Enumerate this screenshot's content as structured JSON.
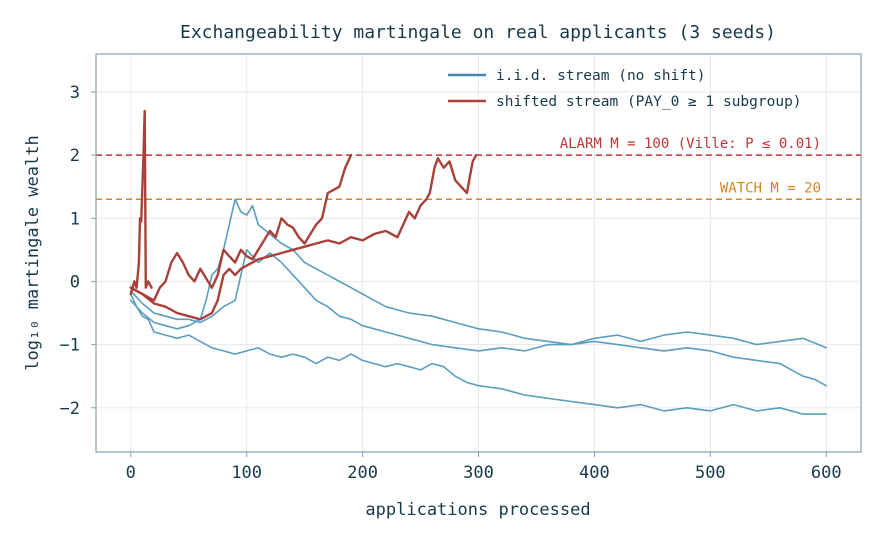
{
  "chart_data": {
    "type": "line",
    "title": "Exchangeability martingale on real applicants (3 seeds)",
    "xlabel": "applications processed",
    "ylabel": "log₁₀ martingale wealth",
    "xlim": [
      -30,
      630
    ],
    "ylim": [
      -2.7,
      3.6
    ],
    "xticks": [
      0,
      100,
      200,
      300,
      400,
      500,
      600
    ],
    "yticks": [
      -2,
      -1,
      0,
      1,
      2,
      3
    ],
    "ytick_labels": [
      "−2",
      "−1",
      "0",
      "1",
      "2",
      "3"
    ],
    "grid": true,
    "legend_position": "top-right",
    "legend": [
      {
        "label": "i.i.d. stream (no shift)",
        "color": "#3f86b0"
      },
      {
        "label": "shifted stream (PAY_0 ≥ 1 subgroup)",
        "color": "#a8413a"
      }
    ],
    "thresholds": [
      {
        "y": 2.0,
        "label": "ALARM  M = 100  (Ville: P ≤ 0.01)",
        "color": "#c03535"
      },
      {
        "y": 1.3,
        "label": "WATCH  M = 20",
        "color": "#d6852a"
      }
    ],
    "series": [
      {
        "group": "iid",
        "color": "#5a9ec0",
        "points": [
          [
            0,
            -0.2
          ],
          [
            5,
            -0.4
          ],
          [
            10,
            -0.55
          ],
          [
            15,
            -0.6
          ],
          [
            20,
            -0.8
          ],
          [
            30,
            -0.85
          ],
          [
            40,
            -0.9
          ],
          [
            50,
            -0.85
          ],
          [
            60,
            -0.95
          ],
          [
            70,
            -1.05
          ],
          [
            80,
            -1.1
          ],
          [
            90,
            -1.15
          ],
          [
            100,
            -1.1
          ],
          [
            110,
            -1.05
          ],
          [
            120,
            -1.15
          ],
          [
            130,
            -1.2
          ],
          [
            140,
            -1.15
          ],
          [
            150,
            -1.2
          ],
          [
            160,
            -1.3
          ],
          [
            170,
            -1.2
          ],
          [
            180,
            -1.25
          ],
          [
            190,
            -1.15
          ],
          [
            200,
            -1.25
          ],
          [
            210,
            -1.3
          ],
          [
            220,
            -1.35
          ],
          [
            230,
            -1.3
          ],
          [
            240,
            -1.35
          ],
          [
            250,
            -1.4
          ],
          [
            260,
            -1.3
          ],
          [
            270,
            -1.35
          ],
          [
            280,
            -1.5
          ],
          [
            290,
            -1.6
          ],
          [
            300,
            -1.65
          ],
          [
            320,
            -1.7
          ],
          [
            340,
            -1.8
          ],
          [
            360,
            -1.85
          ],
          [
            380,
            -1.9
          ],
          [
            400,
            -1.95
          ],
          [
            420,
            -2.0
          ],
          [
            440,
            -1.95
          ],
          [
            460,
            -2.05
          ],
          [
            480,
            -2.0
          ],
          [
            500,
            -2.05
          ],
          [
            520,
            -1.95
          ],
          [
            540,
            -2.05
          ],
          [
            560,
            -2.0
          ],
          [
            580,
            -2.1
          ],
          [
            600,
            -2.1
          ]
        ]
      },
      {
        "group": "iid",
        "color": "#5a9ec0",
        "points": [
          [
            0,
            -0.3
          ],
          [
            10,
            -0.5
          ],
          [
            20,
            -0.65
          ],
          [
            30,
            -0.7
          ],
          [
            40,
            -0.75
          ],
          [
            50,
            -0.7
          ],
          [
            60,
            -0.6
          ],
          [
            65,
            -0.3
          ],
          [
            70,
            0.1
          ],
          [
            75,
            0.2
          ],
          [
            80,
            0.5
          ],
          [
            85,
            0.9
          ],
          [
            90,
            1.3
          ],
          [
            95,
            1.1
          ],
          [
            100,
            1.05
          ],
          [
            105,
            1.2
          ],
          [
            110,
            0.9
          ],
          [
            120,
            0.75
          ],
          [
            130,
            0.6
          ],
          [
            140,
            0.5
          ],
          [
            150,
            0.3
          ],
          [
            160,
            0.2
          ],
          [
            170,
            0.1
          ],
          [
            180,
            0.0
          ],
          [
            190,
            -0.1
          ],
          [
            200,
            -0.2
          ],
          [
            210,
            -0.3
          ],
          [
            220,
            -0.4
          ],
          [
            230,
            -0.45
          ],
          [
            240,
            -0.5
          ],
          [
            260,
            -0.55
          ],
          [
            280,
            -0.65
          ],
          [
            300,
            -0.75
          ],
          [
            320,
            -0.8
          ],
          [
            340,
            -0.9
          ],
          [
            360,
            -0.95
          ],
          [
            380,
            -1.0
          ],
          [
            400,
            -0.95
          ],
          [
            420,
            -1.0
          ],
          [
            440,
            -1.05
          ],
          [
            460,
            -1.1
          ],
          [
            480,
            -1.05
          ],
          [
            500,
            -1.1
          ],
          [
            520,
            -1.2
          ],
          [
            540,
            -1.25
          ],
          [
            560,
            -1.3
          ],
          [
            580,
            -1.5
          ],
          [
            590,
            -1.55
          ],
          [
            600,
            -1.65
          ]
        ]
      },
      {
        "group": "iid",
        "color": "#5a9ec0",
        "points": [
          [
            0,
            -0.15
          ],
          [
            10,
            -0.35
          ],
          [
            20,
            -0.5
          ],
          [
            30,
            -0.55
          ],
          [
            40,
            -0.6
          ],
          [
            50,
            -0.6
          ],
          [
            60,
            -0.65
          ],
          [
            70,
            -0.55
          ],
          [
            80,
            -0.4
          ],
          [
            90,
            -0.3
          ],
          [
            95,
            0.1
          ],
          [
            100,
            0.5
          ],
          [
            110,
            0.3
          ],
          [
            120,
            0.45
          ],
          [
            130,
            0.3
          ],
          [
            140,
            0.1
          ],
          [
            150,
            -0.1
          ],
          [
            160,
            -0.3
          ],
          [
            170,
            -0.4
          ],
          [
            180,
            -0.55
          ],
          [
            190,
            -0.6
          ],
          [
            200,
            -0.7
          ],
          [
            210,
            -0.75
          ],
          [
            220,
            -0.8
          ],
          [
            230,
            -0.85
          ],
          [
            240,
            -0.9
          ],
          [
            250,
            -0.95
          ],
          [
            260,
            -1.0
          ],
          [
            280,
            -1.05
          ],
          [
            300,
            -1.1
          ],
          [
            320,
            -1.05
          ],
          [
            340,
            -1.1
          ],
          [
            360,
            -1.0
          ],
          [
            380,
            -1.0
          ],
          [
            400,
            -0.9
          ],
          [
            420,
            -0.85
          ],
          [
            440,
            -0.95
          ],
          [
            460,
            -0.85
          ],
          [
            480,
            -0.8
          ],
          [
            500,
            -0.85
          ],
          [
            520,
            -0.9
          ],
          [
            540,
            -1.0
          ],
          [
            560,
            -0.95
          ],
          [
            580,
            -0.9
          ],
          [
            600,
            -1.05
          ]
        ]
      },
      {
        "group": "shifted",
        "color": "#a8413a",
        "points": [
          [
            0,
            -0.2
          ],
          [
            3,
            0.0
          ],
          [
            5,
            -0.1
          ],
          [
            7,
            0.3
          ],
          [
            8,
            1.0
          ],
          [
            9,
            0.95
          ],
          [
            10,
            1.5
          ],
          [
            11,
            2.0
          ],
          [
            12,
            2.7
          ],
          [
            13,
            -0.1
          ],
          [
            15,
            0.0
          ],
          [
            18,
            -0.1
          ]
        ]
      },
      {
        "group": "shifted",
        "color": "#a8413a",
        "points": [
          [
            0,
            -0.1
          ],
          [
            10,
            -0.2
          ],
          [
            20,
            -0.3
          ],
          [
            25,
            -0.1
          ],
          [
            30,
            0.0
          ],
          [
            35,
            0.3
          ],
          [
            40,
            0.45
          ],
          [
            45,
            0.3
          ],
          [
            50,
            0.1
          ],
          [
            55,
            0.0
          ],
          [
            60,
            0.2
          ],
          [
            65,
            0.05
          ],
          [
            70,
            -0.1
          ],
          [
            75,
            0.1
          ],
          [
            80,
            0.5
          ],
          [
            85,
            0.4
          ],
          [
            90,
            0.3
          ],
          [
            95,
            0.5
          ],
          [
            100,
            0.4
          ],
          [
            105,
            0.35
          ],
          [
            110,
            0.5
          ],
          [
            115,
            0.65
          ],
          [
            120,
            0.8
          ],
          [
            125,
            0.7
          ],
          [
            130,
            1.0
          ],
          [
            135,
            0.9
          ],
          [
            140,
            0.85
          ],
          [
            145,
            0.7
          ],
          [
            150,
            0.6
          ],
          [
            155,
            0.75
          ],
          [
            160,
            0.9
          ],
          [
            165,
            1.0
          ],
          [
            170,
            1.4
          ],
          [
            175,
            1.45
          ],
          [
            180,
            1.5
          ],
          [
            185,
            1.8
          ],
          [
            190,
            2.0
          ]
        ]
      },
      {
        "group": "shifted",
        "color": "#a8413a",
        "points": [
          [
            0,
            -0.1
          ],
          [
            10,
            -0.2
          ],
          [
            20,
            -0.35
          ],
          [
            30,
            -0.4
          ],
          [
            40,
            -0.5
          ],
          [
            50,
            -0.55
          ],
          [
            60,
            -0.6
          ],
          [
            70,
            -0.5
          ],
          [
            75,
            -0.3
          ],
          [
            80,
            0.1
          ],
          [
            85,
            0.2
          ],
          [
            90,
            0.1
          ],
          [
            95,
            0.2
          ],
          [
            100,
            0.25
          ],
          [
            110,
            0.35
          ],
          [
            120,
            0.4
          ],
          [
            130,
            0.45
          ],
          [
            140,
            0.5
          ],
          [
            150,
            0.55
          ],
          [
            160,
            0.6
          ],
          [
            170,
            0.65
          ],
          [
            180,
            0.6
          ],
          [
            190,
            0.7
          ],
          [
            200,
            0.65
          ],
          [
            210,
            0.75
          ],
          [
            220,
            0.8
          ],
          [
            230,
            0.7
          ],
          [
            235,
            0.9
          ],
          [
            240,
            1.1
          ],
          [
            245,
            1.0
          ],
          [
            250,
            1.2
          ],
          [
            255,
            1.3
          ],
          [
            258,
            1.4
          ],
          [
            262,
            1.8
          ],
          [
            265,
            1.95
          ],
          [
            270,
            1.8
          ],
          [
            275,
            1.9
          ],
          [
            280,
            1.6
          ],
          [
            285,
            1.5
          ],
          [
            290,
            1.4
          ],
          [
            295,
            1.9
          ],
          [
            298,
            2.0
          ]
        ]
      }
    ]
  }
}
